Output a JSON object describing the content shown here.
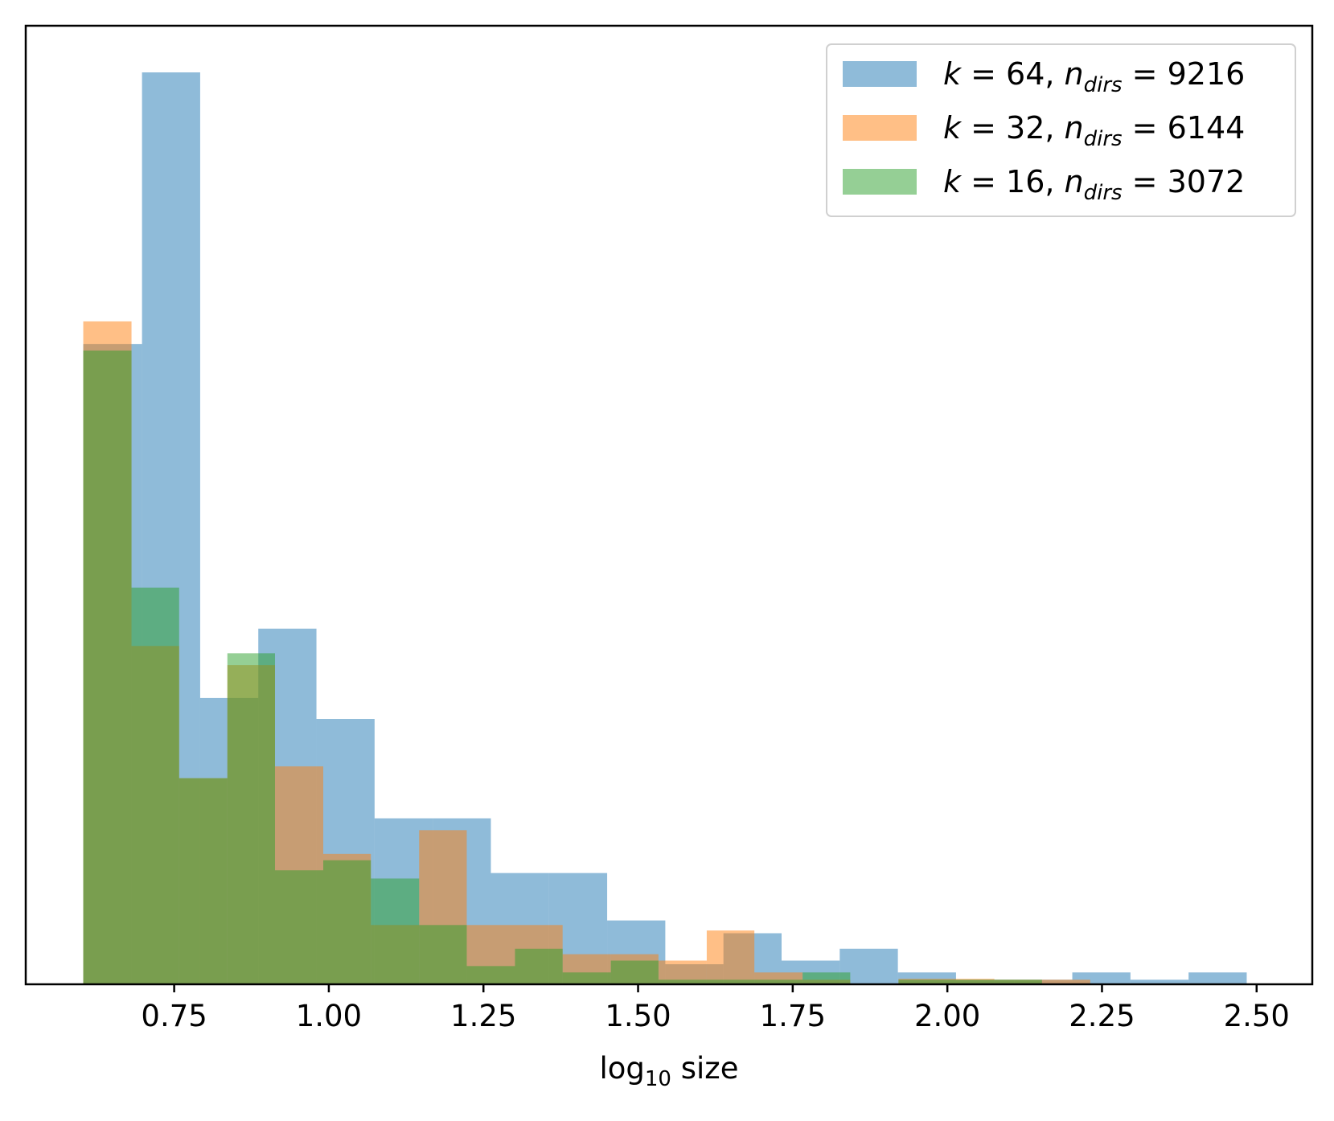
{
  "chart_data": {
    "type": "histogram",
    "xlabel": {
      "main": "log",
      "sub": "10",
      "rest": " size"
    },
    "xlim": [
      0.51,
      2.59
    ],
    "ylim": [
      0,
      1.0
    ],
    "x_ticks": [
      0.75,
      1.0,
      1.25,
      1.5,
      1.75,
      2.0,
      2.25,
      2.5
    ],
    "x_tick_labels": [
      "0.75",
      "1.00",
      "1.25",
      "1.50",
      "1.75",
      "2.00",
      "2.25",
      "2.50"
    ],
    "y_ticks_shown": false,
    "legend_position": "top-right",
    "series": [
      {
        "name": "k = 64, n_dirs = 9216",
        "legend": {
          "k": "64",
          "n": "9216"
        },
        "color": "#1f77b4",
        "opacity": 0.5,
        "bins": [
          [
            0.603,
            0.698,
            0.702
          ],
          [
            0.698,
            0.792,
            1.0
          ],
          [
            0.792,
            0.886,
            0.314
          ],
          [
            0.886,
            0.98,
            0.39
          ],
          [
            0.98,
            1.074,
            0.291
          ],
          [
            1.074,
            1.168,
            0.182
          ],
          [
            1.168,
            1.262,
            0.182
          ],
          [
            1.262,
            1.356,
            0.122
          ],
          [
            1.356,
            1.45,
            0.122
          ],
          [
            1.45,
            1.544,
            0.07
          ],
          [
            1.544,
            1.638,
            0.022
          ],
          [
            1.638,
            1.732,
            0.056
          ],
          [
            1.732,
            1.826,
            0.026
          ],
          [
            1.826,
            1.92,
            0.039
          ],
          [
            1.92,
            2.014,
            0.013
          ],
          [
            2.014,
            2.108,
            0.005
          ],
          [
            2.108,
            2.202,
            0.005
          ],
          [
            2.202,
            2.296,
            0.013
          ],
          [
            2.296,
            2.39,
            0.005
          ],
          [
            2.39,
            2.484,
            0.013
          ]
        ]
      },
      {
        "name": "k = 32, n_dirs = 6144",
        "legend": {
          "k": "32",
          "n": "6144"
        },
        "color": "#ff7f0e",
        "opacity": 0.5,
        "bins": [
          [
            0.603,
            0.681,
            0.727
          ],
          [
            0.681,
            0.758,
            0.371
          ],
          [
            0.758,
            0.836,
            0.226
          ],
          [
            0.836,
            0.913,
            0.35
          ],
          [
            0.913,
            0.991,
            0.239
          ],
          [
            0.991,
            1.068,
            0.143
          ],
          [
            1.068,
            1.146,
            0.065
          ],
          [
            1.146,
            1.223,
            0.169
          ],
          [
            1.223,
            1.301,
            0.065
          ],
          [
            1.301,
            1.378,
            0.065
          ],
          [
            1.378,
            1.456,
            0.033
          ],
          [
            1.456,
            1.533,
            0.033
          ],
          [
            1.533,
            1.611,
            0.026
          ],
          [
            1.611,
            1.688,
            0.059
          ],
          [
            1.688,
            1.766,
            0.013
          ],
          [
            1.766,
            1.843,
            0.005
          ],
          [
            1.843,
            1.921,
            0.0
          ],
          [
            1.921,
            1.998,
            0.006
          ],
          [
            1.998,
            2.076,
            0.006
          ],
          [
            2.076,
            2.153,
            0.005
          ],
          [
            2.153,
            2.231,
            0.005
          ]
        ]
      },
      {
        "name": "k = 16, n_dirs = 3072",
        "legend": {
          "k": "16",
          "n": "3072"
        },
        "color": "#2ca02c",
        "opacity": 0.5,
        "bins": [
          [
            0.603,
            0.681,
            0.695
          ],
          [
            0.681,
            0.758,
            0.435
          ],
          [
            0.758,
            0.836,
            0.226
          ],
          [
            0.836,
            0.913,
            0.363
          ],
          [
            0.913,
            0.991,
            0.125
          ],
          [
            0.991,
            1.068,
            0.136
          ],
          [
            1.068,
            1.146,
            0.116
          ],
          [
            1.146,
            1.223,
            0.065
          ],
          [
            1.223,
            1.301,
            0.02
          ],
          [
            1.301,
            1.378,
            0.039
          ],
          [
            1.378,
            1.456,
            0.013
          ],
          [
            1.456,
            1.533,
            0.026
          ],
          [
            1.533,
            1.611,
            0.005
          ],
          [
            1.611,
            1.688,
            0.005
          ],
          [
            1.688,
            1.766,
            0.005
          ],
          [
            1.766,
            1.843,
            0.013
          ],
          [
            1.843,
            1.921,
            0.0
          ],
          [
            1.921,
            1.998,
            0.005
          ],
          [
            1.998,
            2.076,
            0.005
          ],
          [
            2.076,
            2.153,
            0.005
          ]
        ]
      }
    ]
  }
}
